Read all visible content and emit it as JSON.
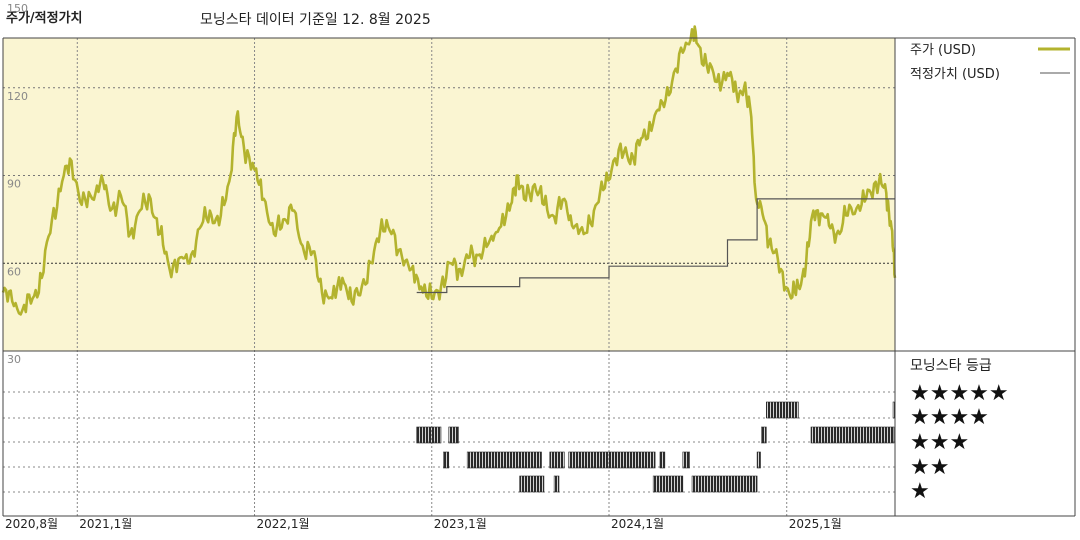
{
  "header": {
    "title": "주가/적정가치",
    "subtitle": "모닝스타 데이터 기준일 12. 8월 2025"
  },
  "colors": {
    "price": "#b3b32e",
    "fair_value": "#555555",
    "panel_bg": "#faf5d2",
    "bars": "#2a2a2a"
  },
  "chart_data": {
    "type": "line",
    "y_ticks": [
      "150",
      "120",
      "90",
      "60",
      "30"
    ],
    "ylim": [
      30,
      150
    ],
    "x_ticks": [
      {
        "label": "2020,8월",
        "date": "2020-08-01"
      },
      {
        "label": "2021,1월",
        "date": "2021-01-01"
      },
      {
        "label": "2022,1월",
        "date": "2022-01-01"
      },
      {
        "label": "2023,1월",
        "date": "2023-01-01"
      },
      {
        "label": "2024,1월",
        "date": "2024-01-01"
      },
      {
        "label": "2025,1월",
        "date": "2025-01-01"
      }
    ],
    "xlim": [
      "2020-08-01",
      "2025-08-12"
    ],
    "legend": {
      "price_label": "주가 (USD)",
      "fair_value_label": "적정가치 (USD)",
      "rating_title": "모닝스타 등급",
      "stars": [
        "★★★★★",
        "★★★★",
        "★★★",
        "★★",
        "★"
      ]
    },
    "series": [
      {
        "name": "주가 (USD)",
        "points": [
          [
            "2020-08-01",
            50
          ],
          [
            "2020-08-20",
            47
          ],
          [
            "2020-09-10",
            44
          ],
          [
            "2020-10-01",
            48
          ],
          [
            "2020-10-20",
            55
          ],
          [
            "2020-11-10",
            75
          ],
          [
            "2020-12-01",
            88
          ],
          [
            "2020-12-20",
            95
          ],
          [
            "2021-01-10",
            80
          ],
          [
            "2021-02-01",
            82
          ],
          [
            "2021-02-20",
            90
          ],
          [
            "2021-03-10",
            78
          ],
          [
            "2021-04-01",
            83
          ],
          [
            "2021-04-20",
            70
          ],
          [
            "2021-05-10",
            78
          ],
          [
            "2021-06-01",
            82
          ],
          [
            "2021-06-20",
            70
          ],
          [
            "2021-07-10",
            58
          ],
          [
            "2021-08-01",
            62
          ],
          [
            "2021-08-20",
            60
          ],
          [
            "2021-09-10",
            72
          ],
          [
            "2021-10-01",
            78
          ],
          [
            "2021-10-20",
            73
          ],
          [
            "2021-11-10",
            88
          ],
          [
            "2021-11-25",
            110
          ],
          [
            "2021-12-10",
            100
          ],
          [
            "2022-01-01",
            92
          ],
          [
            "2022-01-20",
            82
          ],
          [
            "2022-02-10",
            70
          ],
          [
            "2022-03-01",
            75
          ],
          [
            "2022-03-20",
            78
          ],
          [
            "2022-04-10",
            66
          ],
          [
            "2022-05-01",
            64
          ],
          [
            "2022-05-20",
            50
          ],
          [
            "2022-06-10",
            48
          ],
          [
            "2022-07-01",
            55
          ],
          [
            "2022-07-20",
            47
          ],
          [
            "2022-08-10",
            52
          ],
          [
            "2022-09-01",
            60
          ],
          [
            "2022-09-20",
            75
          ],
          [
            "2022-10-10",
            70
          ],
          [
            "2022-11-01",
            62
          ],
          [
            "2022-11-20",
            58
          ],
          [
            "2022-12-10",
            52
          ],
          [
            "2023-01-01",
            48
          ],
          [
            "2023-01-20",
            52
          ],
          [
            "2023-02-10",
            60
          ],
          [
            "2023-03-01",
            58
          ],
          [
            "2023-03-20",
            62
          ],
          [
            "2023-04-10",
            63
          ],
          [
            "2023-05-01",
            68
          ],
          [
            "2023-05-20",
            72
          ],
          [
            "2023-06-10",
            78
          ],
          [
            "2023-06-25",
            90
          ],
          [
            "2023-07-10",
            82
          ],
          [
            "2023-08-01",
            87
          ],
          [
            "2023-08-20",
            80
          ],
          [
            "2023-09-10",
            76
          ],
          [
            "2023-10-01",
            82
          ],
          [
            "2023-10-20",
            72
          ],
          [
            "2023-11-10",
            70
          ],
          [
            "2023-12-01",
            78
          ],
          [
            "2023-12-20",
            85
          ],
          [
            "2024-01-10",
            95
          ],
          [
            "2024-02-01",
            98
          ],
          [
            "2024-02-20",
            96
          ],
          [
            "2024-03-10",
            103
          ],
          [
            "2024-04-01",
            108
          ],
          [
            "2024-04-20",
            115
          ],
          [
            "2024-05-10",
            122
          ],
          [
            "2024-06-01",
            132
          ],
          [
            "2024-06-20",
            140
          ],
          [
            "2024-07-01",
            135
          ],
          [
            "2024-07-20",
            128
          ],
          [
            "2024-08-10",
            122
          ],
          [
            "2024-09-01",
            125
          ],
          [
            "2024-09-20",
            118
          ],
          [
            "2024-10-05",
            120
          ],
          [
            "2024-10-20",
            110
          ],
          [
            "2024-10-30",
            82
          ],
          [
            "2024-11-15",
            75
          ],
          [
            "2024-12-01",
            65
          ],
          [
            "2024-12-20",
            58
          ],
          [
            "2025-01-10",
            48
          ],
          [
            "2025-01-25",
            52
          ],
          [
            "2025-02-10",
            60
          ],
          [
            "2025-02-25",
            78
          ],
          [
            "2025-03-15",
            77
          ],
          [
            "2025-04-01",
            72
          ],
          [
            "2025-04-20",
            70
          ],
          [
            "2025-05-10",
            80
          ],
          [
            "2025-06-01",
            78
          ],
          [
            "2025-06-20",
            85
          ],
          [
            "2025-07-10",
            88
          ],
          [
            "2025-07-25",
            84
          ],
          [
            "2025-08-05",
            72
          ],
          [
            "2025-08-12",
            55
          ]
        ]
      },
      {
        "name": "적정가치 (USD)",
        "points": [
          [
            "2022-12-01",
            50
          ],
          [
            "2023-02-01",
            50
          ],
          [
            "2023-02-01",
            52
          ],
          [
            "2023-07-01",
            52
          ],
          [
            "2023-07-01",
            55
          ],
          [
            "2024-01-01",
            55
          ],
          [
            "2024-01-01",
            59
          ],
          [
            "2024-09-01",
            59
          ],
          [
            "2024-09-01",
            68
          ],
          [
            "2024-11-01",
            68
          ],
          [
            "2024-11-01",
            82
          ],
          [
            "2025-08-12",
            82
          ]
        ]
      }
    ],
    "rating_bars": [
      {
        "stars": 4,
        "ranges": [
          [
            "2024-11-20",
            "2025-01-25"
          ],
          [
            "2025-08-08",
            "2025-08-12"
          ]
        ]
      },
      {
        "stars": 3,
        "ranges": [
          [
            "2022-12-01",
            "2023-01-20"
          ],
          [
            "2023-02-05",
            "2023-02-25"
          ],
          [
            "2024-11-10",
            "2024-11-20"
          ],
          [
            "2025-02-20",
            "2025-08-10"
          ]
        ]
      },
      {
        "stars": 2,
        "ranges": [
          [
            "2023-01-25",
            "2023-02-05"
          ],
          [
            "2023-03-15",
            "2023-08-15"
          ],
          [
            "2023-09-01",
            "2023-10-01"
          ],
          [
            "2023-10-10",
            "2024-04-05"
          ],
          [
            "2024-04-15",
            "2024-04-25"
          ],
          [
            "2024-06-01",
            "2024-06-15"
          ],
          [
            "2024-11-01",
            "2024-11-08"
          ]
        ]
      },
      {
        "stars": 1,
        "ranges": [
          [
            "2023-07-01",
            "2023-08-20"
          ],
          [
            "2023-09-10",
            "2023-09-20"
          ],
          [
            "2024-04-01",
            "2024-06-01"
          ],
          [
            "2024-06-20",
            "2024-11-01"
          ]
        ]
      }
    ]
  }
}
